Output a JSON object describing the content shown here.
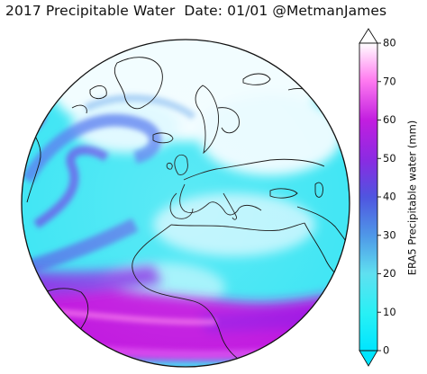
{
  "title": "2017 Precipitable Water  Date: 01/01 @MetmanJames",
  "colorbar": {
    "label": "ERA5 Precipitable water (mm)",
    "min": 0,
    "max": 80,
    "ticks": [
      "0",
      "10",
      "20",
      "30",
      "40",
      "50",
      "60",
      "70",
      "80"
    ],
    "extend": "both",
    "colors": [
      "#00e5ff",
      "#28f0f5",
      "#5fe0f0",
      "#4f9ae8",
      "#4f55e0",
      "#8a2be2",
      "#c21ee0",
      "#ff7cf0",
      "#ffffff"
    ]
  },
  "map": {
    "projection": "orthographic",
    "variable": "precipitable water",
    "ocean_base_color": "#41e8f5",
    "tropical_band_color": "#c21ee0"
  }
}
